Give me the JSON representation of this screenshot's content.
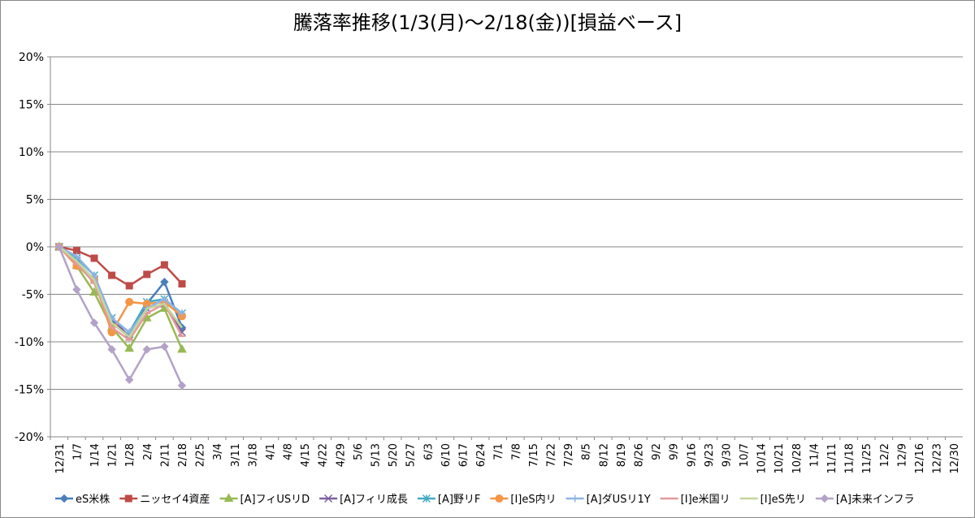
{
  "chart_data": {
    "type": "line",
    "title": "騰落率推移(1/3(月)～2/18(金))[損益ベース]",
    "categories": [
      "12/31",
      "1/7",
      "1/14",
      "1/21",
      "1/28",
      "2/4",
      "2/11",
      "2/18",
      "2/25",
      "3/4",
      "3/11",
      "3/18",
      "4/1",
      "4/8",
      "4/15",
      "4/22",
      "4/29",
      "5/6",
      "5/13",
      "5/20",
      "5/27",
      "6/3",
      "6/10",
      "6/17",
      "6/24",
      "7/1",
      "7/8",
      "7/15",
      "7/22",
      "7/29",
      "8/5",
      "8/12",
      "8/19",
      "8/26",
      "9/2",
      "9/9",
      "9/16",
      "9/23",
      "9/30",
      "10/7",
      "10/14",
      "10/21",
      "10/28",
      "11/4",
      "11/11",
      "11/18",
      "11/25",
      "12/2",
      "12/9",
      "12/16",
      "12/23",
      "12/30"
    ],
    "ylim": [
      -20,
      20
    ],
    "yticks": [
      {
        "value": -20,
        "label": "-20%"
      },
      {
        "value": -15,
        "label": "-15%"
      },
      {
        "value": -10,
        "label": "-10%"
      },
      {
        "value": -5,
        "label": "-5%"
      },
      {
        "value": 0,
        "label": "0%"
      },
      {
        "value": 5,
        "label": "5%"
      },
      {
        "value": 10,
        "label": "10%"
      },
      {
        "value": 15,
        "label": "15%"
      },
      {
        "value": 20,
        "label": "20%"
      }
    ],
    "grid": true,
    "legend": "bottom",
    "series": [
      {
        "name": "eS米株",
        "color": "#4a7ebb",
        "marker": "diamond",
        "values": [
          0,
          -1.5,
          -3.5,
          -8,
          -9.5,
          -6,
          -3.7,
          -8.5,
          null,
          null,
          null,
          null,
          null,
          null,
          null,
          null,
          null,
          null,
          null,
          null,
          null,
          null,
          null,
          null,
          null,
          null,
          null,
          null,
          null,
          null,
          null,
          null,
          null,
          null,
          null,
          null,
          null,
          null,
          null,
          null,
          null,
          null,
          null,
          null,
          null,
          null,
          null,
          null,
          null,
          null,
          null,
          null
        ]
      },
      {
        "name": "ニッセイ4資産",
        "color": "#be4b48",
        "marker": "square",
        "values": [
          0,
          -0.4,
          -1.2,
          -3,
          -4.1,
          -2.9,
          -1.9,
          -3.9,
          null,
          null,
          null,
          null,
          null,
          null,
          null,
          null,
          null,
          null,
          null,
          null,
          null,
          null,
          null,
          null,
          null,
          null,
          null,
          null,
          null,
          null,
          null,
          null,
          null,
          null,
          null,
          null,
          null,
          null,
          null,
          null,
          null,
          null,
          null,
          null,
          null,
          null,
          null,
          null,
          null,
          null,
          null,
          null
        ]
      },
      {
        "name": "[A]フィUSリD",
        "color": "#98b954",
        "marker": "triangle",
        "values": [
          0,
          -2,
          -4.8,
          -8.5,
          -10.7,
          -7.5,
          -6.5,
          -10.8,
          null,
          null,
          null,
          null,
          null,
          null,
          null,
          null,
          null,
          null,
          null,
          null,
          null,
          null,
          null,
          null,
          null,
          null,
          null,
          null,
          null,
          null,
          null,
          null,
          null,
          null,
          null,
          null,
          null,
          null,
          null,
          null,
          null,
          null,
          null,
          null,
          null,
          null,
          null,
          null,
          null,
          null,
          null,
          null
        ]
      },
      {
        "name": "[A]フィリ成長",
        "color": "#7d60a0",
        "marker": "x",
        "values": [
          0,
          -1.5,
          -3.5,
          -7.5,
          -9.5,
          -6.5,
          -6,
          -9,
          null,
          null,
          null,
          null,
          null,
          null,
          null,
          null,
          null,
          null,
          null,
          null,
          null,
          null,
          null,
          null,
          null,
          null,
          null,
          null,
          null,
          null,
          null,
          null,
          null,
          null,
          null,
          null,
          null,
          null,
          null,
          null,
          null,
          null,
          null,
          null,
          null,
          null,
          null,
          null,
          null,
          null,
          null,
          null
        ]
      },
      {
        "name": "[A]野リF",
        "color": "#46aac5",
        "marker": "star",
        "values": [
          0,
          -1.2,
          -3,
          -7.5,
          -9,
          -5.8,
          -5.5,
          -7,
          null,
          null,
          null,
          null,
          null,
          null,
          null,
          null,
          null,
          null,
          null,
          null,
          null,
          null,
          null,
          null,
          null,
          null,
          null,
          null,
          null,
          null,
          null,
          null,
          null,
          null,
          null,
          null,
          null,
          null,
          null,
          null,
          null,
          null,
          null,
          null,
          null,
          null,
          null,
          null,
          null,
          null,
          null,
          null
        ]
      },
      {
        "name": "[I]eS内リ",
        "color": "#f69546",
        "marker": "circle",
        "values": [
          0,
          -2,
          -3.5,
          -9,
          -5.8,
          -6,
          -5.8,
          -7.3,
          null,
          null,
          null,
          null,
          null,
          null,
          null,
          null,
          null,
          null,
          null,
          null,
          null,
          null,
          null,
          null,
          null,
          null,
          null,
          null,
          null,
          null,
          null,
          null,
          null,
          null,
          null,
          null,
          null,
          null,
          null,
          null,
          null,
          null,
          null,
          null,
          null,
          null,
          null,
          null,
          null,
          null,
          null,
          null
        ]
      },
      {
        "name": "[A]ダUSリ1Y",
        "color": "#8eb4e3",
        "marker": "plus",
        "values": [
          0,
          -1,
          -3,
          -7.5,
          -9,
          -6.5,
          -5.5,
          -7,
          null,
          null,
          null,
          null,
          null,
          null,
          null,
          null,
          null,
          null,
          null,
          null,
          null,
          null,
          null,
          null,
          null,
          null,
          null,
          null,
          null,
          null,
          null,
          null,
          null,
          null,
          null,
          null,
          null,
          null,
          null,
          null,
          null,
          null,
          null,
          null,
          null,
          null,
          null,
          null,
          null,
          null,
          null,
          null
        ]
      },
      {
        "name": "[I]e米国リ",
        "color": "#e5999a",
        "marker": "dash",
        "values": [
          0,
          -1.8,
          -3.8,
          -8.5,
          -9.8,
          -7,
          -6,
          -9.4,
          null,
          null,
          null,
          null,
          null,
          null,
          null,
          null,
          null,
          null,
          null,
          null,
          null,
          null,
          null,
          null,
          null,
          null,
          null,
          null,
          null,
          null,
          null,
          null,
          null,
          null,
          null,
          null,
          null,
          null,
          null,
          null,
          null,
          null,
          null,
          null,
          null,
          null,
          null,
          null,
          null,
          null,
          null,
          null
        ]
      },
      {
        "name": "[I]eS先リ",
        "color": "#c3d69b",
        "marker": "none",
        "values": [
          0,
          -1.5,
          -3.5,
          -8,
          -9.5,
          -6.5,
          -6,
          -8.5,
          null,
          null,
          null,
          null,
          null,
          null,
          null,
          null,
          null,
          null,
          null,
          null,
          null,
          null,
          null,
          null,
          null,
          null,
          null,
          null,
          null,
          null,
          null,
          null,
          null,
          null,
          null,
          null,
          null,
          null,
          null,
          null,
          null,
          null,
          null,
          null,
          null,
          null,
          null,
          null,
          null,
          null,
          null,
          null
        ]
      },
      {
        "name": "[A]未来インフラ",
        "color": "#b3a2c7",
        "marker": "diamond",
        "values": [
          0,
          -4.5,
          -8,
          -10.8,
          -14,
          -10.8,
          -10.5,
          -14.6,
          null,
          null,
          null,
          null,
          null,
          null,
          null,
          null,
          null,
          null,
          null,
          null,
          null,
          null,
          null,
          null,
          null,
          null,
          null,
          null,
          null,
          null,
          null,
          null,
          null,
          null,
          null,
          null,
          null,
          null,
          null,
          null,
          null,
          null,
          null,
          null,
          null,
          null,
          null,
          null,
          null,
          null,
          null,
          null
        ]
      }
    ]
  }
}
